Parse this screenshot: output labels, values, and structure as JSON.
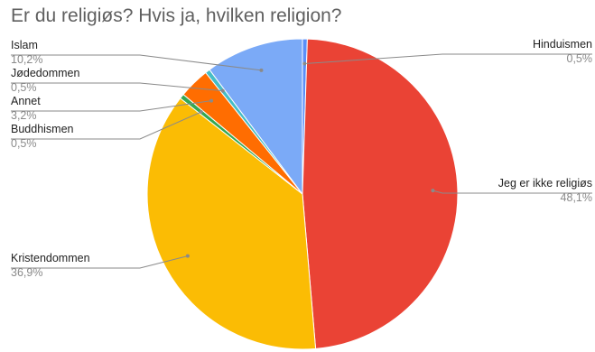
{
  "chart_data": {
    "type": "pie",
    "title": "Er du religiøs? Hvis ja, hvilken religion?",
    "legend": "labels",
    "slices": [
      {
        "label": "Hinduismen",
        "value_label": "0,5%",
        "value": 0.5,
        "color": "#5b8ff9"
      },
      {
        "label": "Jeg er ikke religiøs",
        "value_label": "48,1%",
        "value": 48.1,
        "color": "#ea4335"
      },
      {
        "label": "Kristendommen",
        "value_label": "36,9%",
        "value": 36.9,
        "color": "#fbbc04"
      },
      {
        "label": "Buddhismen",
        "value_label": "0,5%",
        "value": 0.5,
        "color": "#34a853"
      },
      {
        "label": "Annet",
        "value_label": "3,2%",
        "value": 3.2,
        "color": "#ff6d01"
      },
      {
        "label": "Jødedommen",
        "value_label": "0,5%",
        "value": 0.5,
        "color": "#46bdc6"
      },
      {
        "label": "Islam",
        "value_label": "10,2%",
        "value": 10.2,
        "color": "#7baaf7"
      }
    ]
  }
}
